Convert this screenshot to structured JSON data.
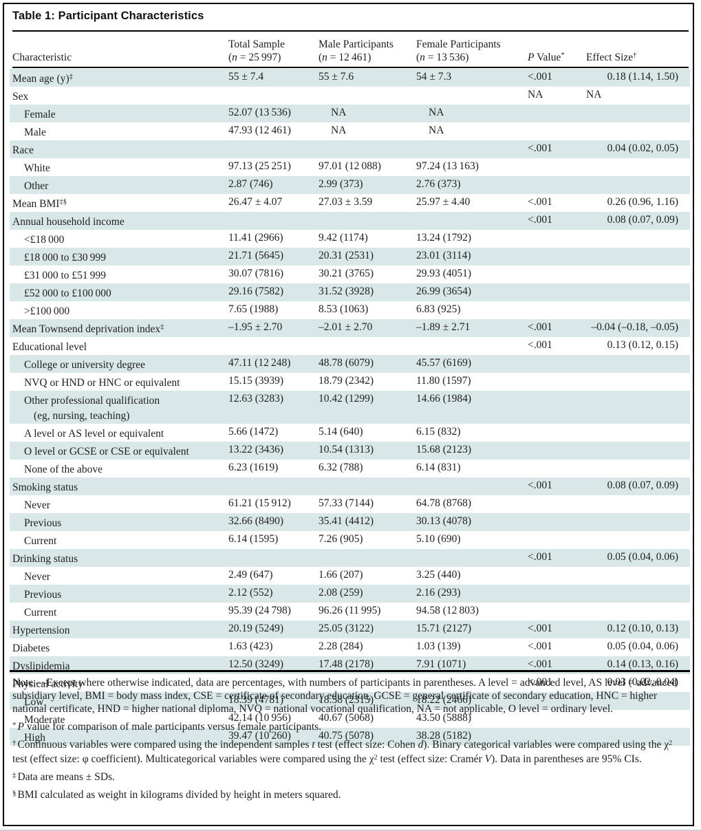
{
  "page": {
    "title": "Table 1: Participant Characteristics"
  },
  "colors": {
    "row_shade": "#d9e7e9",
    "rule": "#000000",
    "text": "#1e1e1e"
  },
  "table": {
    "header": {
      "characteristic": "Characteristic",
      "total": {
        "title": "Total Sample",
        "sub_open": "(",
        "sub_n": "n",
        "sub_rest": " = 25 997)"
      },
      "male": {
        "title": "Male Participants",
        "sub_open": "(",
        "sub_n": "n",
        "sub_rest": " = 12 461)"
      },
      "female": {
        "title": "Female Participants",
        "sub_open": "(",
        "sub_n": "n",
        "sub_rest": " = 13 536)"
      },
      "pvalue": {
        "title_italic": "P",
        "title_rest": " Value",
        "sup": "*"
      },
      "effect": {
        "title": "Effect Size",
        "sup": "†"
      }
    },
    "rows": [
      {
        "label": "Mean age (y)",
        "sup": "‡",
        "total": "55 ± 7.4",
        "male": "55 ± 7.6",
        "female": "54 ± 7.3",
        "p": "<.001",
        "effect": "0.18 (1.14, 1.50)"
      },
      {
        "label": "Sex",
        "p": "NA",
        "effect": "NA"
      },
      {
        "label": "Female",
        "indent": true,
        "total": "52.07 (13 536)",
        "male": "NA",
        "female": "NA"
      },
      {
        "label": "Male",
        "indent": true,
        "total": "47.93 (12 461)",
        "male": "NA",
        "female": "NA"
      },
      {
        "label": "Race",
        "p": "<.001",
        "effect": "0.04 (0.02, 0.05)"
      },
      {
        "label": "White",
        "indent": true,
        "total": "97.13 (25 251)",
        "male": "97.01 (12 088)",
        "female": "97.24 (13 163)"
      },
      {
        "label": "Other",
        "indent": true,
        "total": "2.87 (746)",
        "male": "2.99 (373)",
        "female": "2.76 (373)"
      },
      {
        "label": "Mean BMI",
        "sup": "‡§",
        "total": "26.47 ± 4.07",
        "male": "27.03 ± 3.59",
        "female": "25.97 ± 4.40",
        "p": "<.001",
        "effect": "0.26 (0.96, 1.16)"
      },
      {
        "label": "Annual household income",
        "p": "<.001",
        "effect": "0.08 (0.07, 0.09)"
      },
      {
        "label": "<£18 000",
        "indent": true,
        "total": "11.41 (2966)",
        "male": "9.42 (1174)",
        "female": "13.24 (1792)"
      },
      {
        "label": "£18 000 to £30 999",
        "indent": true,
        "total": "21.71 (5645)",
        "male": "20.31 (2531)",
        "female": "23.01 (3114)"
      },
      {
        "label": "£31 000 to £51 999",
        "indent": true,
        "total": "30.07 (7816)",
        "male": "30.21 (3765)",
        "female": "29.93 (4051)"
      },
      {
        "label": "£52 000 to £100 000",
        "indent": true,
        "total": "29.16 (7582)",
        "male": "31.52 (3928)",
        "female": "26.99 (3654)"
      },
      {
        "label": ">£100 000",
        "indent": true,
        "total": "7.65 (1988)",
        "male": "8.53 (1063)",
        "female": "6.83 (925)"
      },
      {
        "label": "Mean Townsend deprivation index",
        "sup": "‡",
        "total": "–1.95 ± 2.70",
        "male": "–2.01 ± 2.70",
        "female": "–1.89 ± 2.71",
        "p": "<.001",
        "effect": "–0.04 (–0.18, –0.05)"
      },
      {
        "label": "Educational level",
        "p": "<.001",
        "effect": "0.13 (0.12, 0.15)"
      },
      {
        "label": "College or university degree",
        "indent": true,
        "total": "47.11 (12 248)",
        "male": "48.78 (6079)",
        "female": "45.57 (6169)"
      },
      {
        "label": "NVQ or HND or HNC or equivalent",
        "indent": true,
        "total": "15.15 (3939)",
        "male": "18.79 (2342)",
        "female": "11.80 (1597)"
      },
      {
        "label": "Other professional qualification",
        "label2": "(eg, nursing, teaching)",
        "indent": true,
        "total": "12.63 (3283)",
        "male": "10.42 (1299)",
        "female": "14.66 (1984)"
      },
      {
        "label": "A level or AS level or equivalent",
        "indent": true,
        "total": "5.66 (1472)",
        "male": "5.14 (640)",
        "female": "6.15 (832)"
      },
      {
        "label": "O level or GCSE or CSE or equivalent",
        "indent": true,
        "total": "13.22 (3436)",
        "male": "10.54 (1313)",
        "female": "15.68 (2123)"
      },
      {
        "label": "None of the above",
        "indent": true,
        "total": "6.23 (1619)",
        "male": "6.32 (788)",
        "female": "6.14 (831)"
      },
      {
        "label": "Smoking status",
        "p": "<.001",
        "effect": "0.08 (0.07, 0.09)"
      },
      {
        "label": "Never",
        "indent": true,
        "total": "61.21 (15 912)",
        "male": "57.33 (7144)",
        "female": "64.78 (8768)"
      },
      {
        "label": "Previous",
        "indent": true,
        "total": "32.66 (8490)",
        "male": "35.41 (4412)",
        "female": "30.13 (4078)"
      },
      {
        "label": "Current",
        "indent": true,
        "total": "6.14 (1595)",
        "male": "7.26 (905)",
        "female": "5.10 (690)"
      },
      {
        "label": "Drinking status",
        "p": "<.001",
        "effect": "0.05 (0.04, 0.06)"
      },
      {
        "label": "Never",
        "indent": true,
        "total": "2.49 (647)",
        "male": "1.66 (207)",
        "female": "3.25 (440)"
      },
      {
        "label": "Previous",
        "indent": true,
        "total": "2.12 (552)",
        "male": "2.08 (259)",
        "female": "2.16 (293)"
      },
      {
        "label": "Current",
        "indent": true,
        "total": "95.39 (24 798)",
        "male": "96.26 (11 995)",
        "female": "94.58 (12 803)"
      },
      {
        "label": "Hypertension",
        "total": "20.19 (5249)",
        "male": "25.05 (3122)",
        "female": "15.71 (2127)",
        "p": "<.001",
        "effect": "0.12 (0.10, 0.13)"
      },
      {
        "label": "Diabetes",
        "total": "1.63 (423)",
        "male": "2.28 (284)",
        "female": "1.03 (139)",
        "p": "<.001",
        "effect": "0.05 (0.04, 0.06)"
      },
      {
        "label": "Dyslipidemia",
        "total": "12.50 (3249)",
        "male": "17.48 (2178)",
        "female": "7.91 (1071)",
        "p": "<.001",
        "effect": "0.14 (0.13, 0.16)"
      },
      {
        "label": "Physical activity",
        "p": "<.001",
        "effect": "0.03 (0.02, 0.04)"
      },
      {
        "label": "Low",
        "indent": true,
        "total": "18.39 (4781)",
        "male": "18.58 (2315)",
        "female": "18.22 (2466)"
      },
      {
        "label": "Moderate",
        "indent": true,
        "total": "42.14 (10 956)",
        "male": "40.67 (5068)",
        "female": "43.50 (5888)"
      },
      {
        "label": "High",
        "indent": true,
        "total": "39.47 (10 260)",
        "male": "40.75 (5078)",
        "female": "38.28 (5182)"
      }
    ]
  },
  "notes": [
    {
      "marker": "",
      "segments": [
        {
          "t": "Note.—Except where otherwise indicated, data are percentages, with numbers of participants in parentheses. A level = advanced level, AS level = advanced subsidiary level, BMI = body mass index, CSE = certificate of secondary education, GCSE = general certificate of secondary education, HNC = higher national certificate, HND = higher national diploma, NVQ = national vocational qualification, NA = not applicable, O level = ordinary level."
        }
      ]
    },
    {
      "marker": "*",
      "segments": [
        {
          "t": "P",
          "i": true
        },
        {
          "t": " value for comparison of male participants versus female participants."
        }
      ]
    },
    {
      "marker": "†",
      "segments": [
        {
          "t": "Continuous variables were compared using the independent samples "
        },
        {
          "t": "t",
          "i": true
        },
        {
          "t": " test (effect size: Cohen "
        },
        {
          "t": "d",
          "i": true
        },
        {
          "t": "). Binary categorical variables were compared using the χ"
        },
        {
          "t": "2",
          "sup": true
        },
        {
          "t": " test (effect size: φ coefficient). Multicategorical variables were compared using the χ"
        },
        {
          "t": "2",
          "sup": true
        },
        {
          "t": " test (effect size: Cramér "
        },
        {
          "t": "V",
          "i": true
        },
        {
          "t": "). Data in parentheses are 95% CIs."
        }
      ]
    },
    {
      "marker": "‡",
      "segments": [
        {
          "t": "Data are means ± SDs."
        }
      ]
    },
    {
      "marker": "§",
      "segments": [
        {
          "t": "BMI calculated as weight in kilograms divided by height in meters squared."
        }
      ]
    }
  ]
}
